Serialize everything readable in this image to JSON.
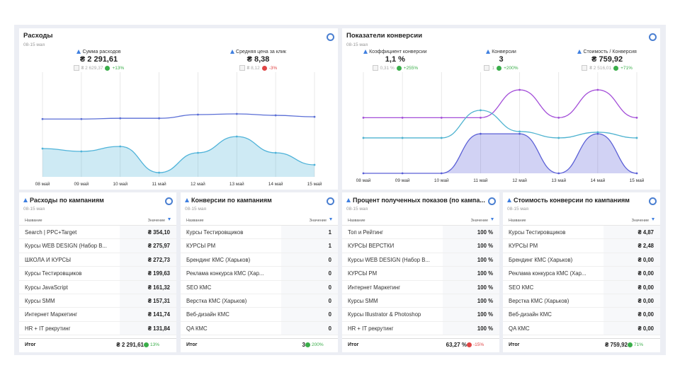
{
  "widgets": [
    {
      "title": "Расходы",
      "date": "08-15 мая",
      "kpis": [
        {
          "label": "Сумма расходов",
          "value": "₴ 2 291,61",
          "previous": "₴ 2 629,37",
          "change": "+13%"
        },
        {
          "label": "Средняя цена за клик",
          "value": "₴ 8,38",
          "previous": "₴ 8,12",
          "change": "-3%"
        }
      ],
      "chart_data": {
        "type": "line",
        "x": [
          "08 май",
          "09 май",
          "10 май",
          "11 май",
          "12 май",
          "13 май",
          "14 май",
          "15 май"
        ],
        "series": [
          {
            "color": "#4fb3d9",
            "area": true,
            "values": [
              343,
              309,
              369,
              51,
              292,
              489,
              292,
              146
            ]
          },
          {
            "color": "#5b6fd6",
            "area": false,
            "values": [
              7.9,
              7.9,
              8.0,
              8.0,
              8.5,
              8.6,
              8.4,
              8.2
            ]
          }
        ]
      }
    },
    {
      "title": "Показатели конверсии",
      "date": "08-15 мая",
      "kpis": [
        {
          "label": "Коэффициент конверсии",
          "value": "1,1 %",
          "previous": "0,31 %",
          "change": "+255%"
        },
        {
          "label": "Конверсии",
          "value": "3",
          "previous": "1",
          "change": "+200%"
        },
        {
          "label": "Стоимость / Конверсия",
          "value": "₴ 759,92",
          "previous": "₴ 2 516,01",
          "change": "+71%"
        }
      ],
      "chart_data": {
        "type": "line",
        "x": [
          "08 май",
          "09 май",
          "10 май",
          "11 май",
          "12 май",
          "13 май",
          "14 май",
          "15 май"
        ],
        "series": [
          {
            "color": "#a34ed8",
            "area": false,
            "values": [
              0.8,
              0.8,
              0.8,
              0.8,
              1.2,
              0.8,
              1.2,
              0.8
            ]
          },
          {
            "color": "#4fb3d0",
            "area": false,
            "values": [
              400,
              400,
              400,
              712,
              472,
              400,
              464,
              400
            ]
          },
          {
            "color": "#5a5fd6",
            "area": true,
            "values": [
              0,
              0,
              0,
              1,
              1,
              0,
              1,
              0
            ]
          }
        ]
      }
    }
  ],
  "tables": [
    {
      "title": "Расходы по кампаниям",
      "date": "08-15 мая",
      "columns": [
        "Название",
        "Значение"
      ],
      "rows": [
        [
          "Search | PPC+Target",
          "₴ 354,10"
        ],
        [
          "Курсы WEB DESIGN (Набор В...",
          "₴ 275,97"
        ],
        [
          "ШКОЛА И КУРСЫ",
          "₴ 272,73"
        ],
        [
          "Курсы Тестировщиков",
          "₴ 199,63"
        ],
        [
          "Курсы JavaScript",
          "₴ 161,32"
        ],
        [
          "Курсы SMM",
          "₴ 157,31"
        ],
        [
          "Интернет Маркетинг",
          "₴ 141,74"
        ],
        [
          "HR + IT рекрутинг",
          "₴ 131,84"
        ]
      ],
      "total": {
        "label": "Итог",
        "value": "₴ 2 291,61",
        "change": "13%"
      }
    },
    {
      "title": "Конверсии по кампаниям",
      "date": "08-15 мая",
      "columns": [
        "Название",
        "Значение"
      ],
      "rows": [
        [
          "Курсы Тестировщиков",
          "1"
        ],
        [
          "КУРСЫ PM",
          "1"
        ],
        [
          "Брендинг КМС (Харьков)",
          "0"
        ],
        [
          "Реклама конкурса КМС (Хар...",
          "0"
        ],
        [
          "SEO КМС",
          "0"
        ],
        [
          "Верстка КМС (Харьков)",
          "0"
        ],
        [
          "Веб-дизайн КМС",
          "0"
        ],
        [
          "QA КМС",
          "0"
        ]
      ],
      "total": {
        "label": "Итог",
        "value": "3",
        "change": "200%"
      }
    },
    {
      "title": "Процент полученных показов (по кампа...",
      "date": "08-15 мая",
      "columns": [
        "Название",
        "Значение"
      ],
      "rows": [
        [
          "Топ и Рейтинг",
          "100 %"
        ],
        [
          "КУРСЫ ВЕРСТКИ",
          "100 %"
        ],
        [
          "Курсы WEB DESIGN (Набор В...",
          "100 %"
        ],
        [
          "КУРСЫ PM",
          "100 %"
        ],
        [
          "Интернет Маркетинг",
          "100 %"
        ],
        [
          "Курсы SMM",
          "100 %"
        ],
        [
          "Курсы Illustrator & Photoshop",
          "100 %"
        ],
        [
          "HR + IT рекрутинг",
          "100 %"
        ]
      ],
      "total": {
        "label": "Итог",
        "value": "63,27 %",
        "change": "-15%"
      }
    },
    {
      "title": "Стоимость конверсии по кампаниям",
      "date": "08-15 мая",
      "columns": [
        "Название",
        "Значение"
      ],
      "rows": [
        [
          "Курсы Тестировщиков",
          "₴ 4,87"
        ],
        [
          "КУРСЫ PM",
          "₴ 2,48"
        ],
        [
          "Брендинг КМС (Харьков)",
          "₴ 0,00"
        ],
        [
          "Реклама конкурса КМС (Хар...",
          "₴ 0,00"
        ],
        [
          "SEO КМС",
          "₴ 0,00"
        ],
        [
          "Верстка КМС (Харьков)",
          "₴ 0,00"
        ],
        [
          "Веб-дизайн КМС",
          "₴ 0,00"
        ],
        [
          "QA КМС",
          "₴ 0,00"
        ]
      ],
      "total": {
        "label": "Итог",
        "value": "₴ 759,92",
        "change": "71%"
      }
    }
  ]
}
